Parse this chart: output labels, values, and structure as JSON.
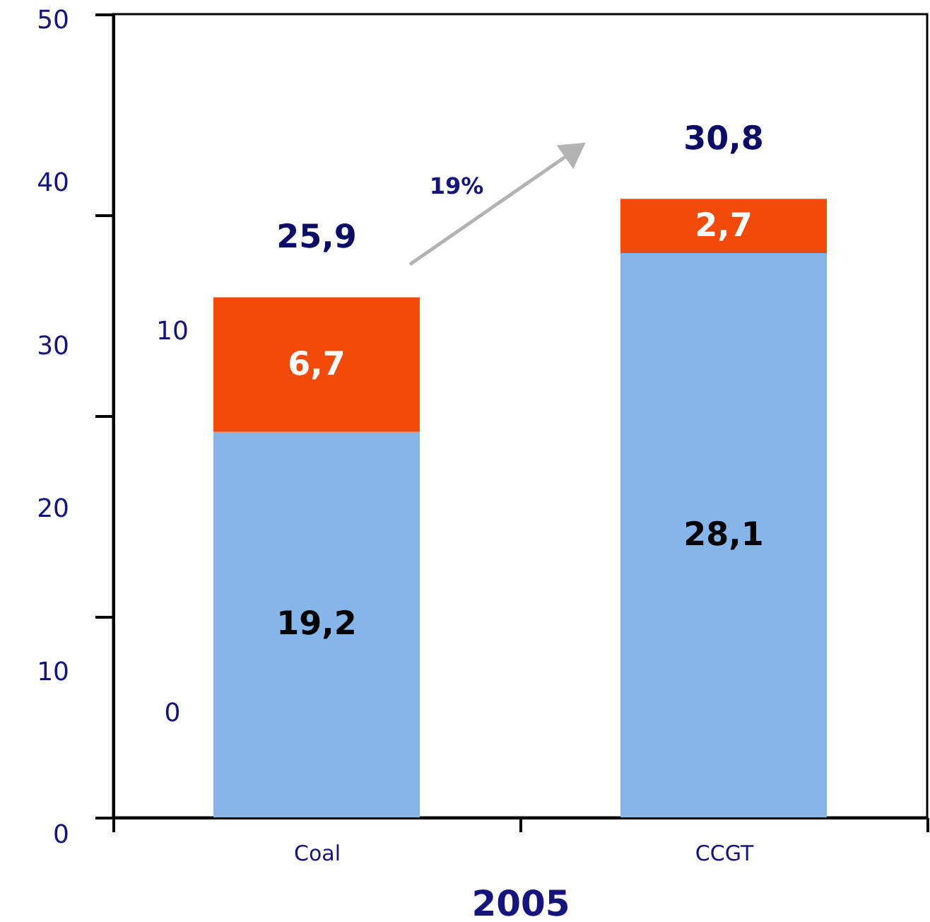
{
  "chart_data": {
    "type": "bar",
    "stacked": true,
    "categories": [
      "Coal",
      "CCGT"
    ],
    "xlabel": "2005",
    "series": [
      {
        "color": "#85b5e9",
        "values": [
          19.2,
          28.1
        ],
        "value_labels": [
          "19,2",
          "28,1"
        ]
      },
      {
        "color": "#f24a0a",
        "values": [
          6.7,
          2.7
        ],
        "value_labels": [
          "6,7",
          "2,7"
        ]
      }
    ],
    "totals": [
      "25,9",
      "30,8"
    ],
    "ylim": [
      0,
      40
    ],
    "yticks": [
      {
        "value": 0,
        "label": null
      },
      {
        "value": 10,
        "label": null
      },
      {
        "value": 20,
        "label": null
      },
      {
        "value": 30,
        "label": null
      },
      {
        "value": 40,
        "label": null
      }
    ],
    "annotations": [
      "19%",
      "50",
      "40",
      "30",
      "20",
      "10",
      "0",
      "10",
      "0"
    ]
  }
}
